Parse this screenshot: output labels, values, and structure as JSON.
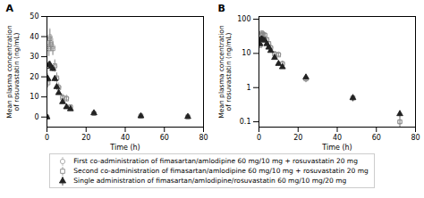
{
  "chart_data": [
    {
      "type": "scatter",
      "title": "A",
      "xlabel": "Time (h)",
      "ylabel": "Mean plasma concentration\nof rosuvastatin (ng/mL)",
      "xlim": [
        0,
        80
      ],
      "xticks": [
        0,
        20,
        40,
        60,
        80
      ],
      "ylim": [
        -5,
        50
      ],
      "yticks": [
        0,
        10,
        20,
        30,
        40,
        50
      ],
      "grid": false,
      "x": [
        0,
        0.5,
        1,
        1.5,
        2,
        3,
        4,
        5,
        6,
        8,
        10,
        12,
        24,
        48,
        72
      ],
      "series": [
        {
          "name": "First co-administration of fimasartan/amlodipine 60 mg/10 mg + rosuvastatin 20 mg",
          "color": "#aaaaaa",
          "marker": "circle-open",
          "values": [
            0.0,
            18.5,
            35.0,
            40.0,
            37.0,
            35.0,
            25.0,
            19.0,
            15.0,
            10.0,
            9.5,
            5.0,
            1.8,
            0.5,
            0.1
          ],
          "errors": [
            0.0,
            3.0,
            4.5,
            4.0,
            4.0,
            4.0,
            3.0,
            2.5,
            2.0,
            1.5,
            1.5,
            1.0,
            0.4,
            0.12,
            0.03
          ]
        },
        {
          "name": "Second co-administration of fimasartan/amlodipine 60 mg/10 mg + rosuvastatin 20 mg",
          "color": "#888888",
          "marker": "square-open",
          "values": [
            0.0,
            17.0,
            34.0,
            39.0,
            36.0,
            34.0,
            25.5,
            19.5,
            14.5,
            9.5,
            9.0,
            5.0,
            1.8,
            0.5,
            0.1
          ],
          "errors": [
            0.0,
            2.5,
            4.0,
            4.5,
            3.5,
            3.5,
            3.0,
            2.5,
            1.8,
            1.5,
            1.2,
            0.9,
            0.4,
            0.12,
            0.03
          ]
        },
        {
          "name": "Single administration of fimasartan/amlodipine/rosuvastatin 60 mg/10 mg/20 mg",
          "color": "#222222",
          "marker": "triangle",
          "values": [
            0.0,
            19.0,
            26.0,
            26.0,
            25.0,
            24.0,
            19.0,
            15.0,
            12.0,
            7.5,
            5.0,
            4.0,
            2.0,
            0.5,
            0.17
          ],
          "errors": [
            0.0,
            1.5,
            1.5,
            1.8,
            1.8,
            1.5,
            1.5,
            1.2,
            1.0,
            0.8,
            0.7,
            0.5,
            0.3,
            0.1,
            0.04
          ]
        }
      ]
    },
    {
      "type": "scatter",
      "title": "B",
      "xlabel": "Time (h)",
      "ylabel": "Mean plasma concentration\nof rosuvastatin (ng/mL)",
      "log": "y",
      "xlim": [
        0,
        80
      ],
      "xticks": [
        0,
        20,
        40,
        60,
        80
      ],
      "ylim": [
        0.07,
        120
      ],
      "yticks": [
        0.1,
        1,
        10,
        100
      ],
      "grid": false,
      "x": [
        0.5,
        1,
        1.5,
        2,
        3,
        4,
        5,
        6,
        8,
        10,
        12,
        24,
        48,
        72
      ],
      "series": [
        {
          "name": "First co-administration of fimasartan/amlodipine 60 mg/10 mg + rosuvastatin 20 mg",
          "color": "#aaaaaa",
          "marker": "circle-open",
          "values": [
            18.5,
            35.0,
            40.0,
            37.0,
            35.0,
            25.0,
            19.0,
            15.0,
            10.0,
            9.5,
            5.0,
            1.8,
            0.5,
            0.1
          ],
          "errors": [
            3.0,
            4.5,
            4.0,
            4.0,
            4.0,
            3.0,
            2.5,
            2.0,
            1.5,
            1.5,
            1.0,
            0.4,
            0.12,
            0.03
          ]
        },
        {
          "name": "Second co-administration of fimasartan/amlodipine 60 mg/10 mg + rosuvastatin 20 mg",
          "color": "#888888",
          "marker": "square-open",
          "values": [
            17.0,
            34.0,
            39.0,
            36.0,
            34.0,
            25.5,
            19.5,
            14.5,
            9.5,
            9.0,
            5.0,
            1.8,
            0.5,
            0.1
          ],
          "errors": [
            2.5,
            4.0,
            4.5,
            3.5,
            3.5,
            3.0,
            2.5,
            1.8,
            1.5,
            1.2,
            0.9,
            0.4,
            0.12,
            0.03
          ]
        },
        {
          "name": "Single administration of fimasartan/amlodipine/rosuvastatin 60 mg/10 mg/20 mg",
          "color": "#222222",
          "marker": "triangle",
          "values": [
            19.0,
            26.0,
            26.0,
            25.0,
            24.0,
            19.0,
            15.0,
            12.0,
            7.5,
            5.0,
            4.0,
            2.0,
            0.5,
            0.17
          ],
          "errors": [
            1.5,
            1.5,
            1.8,
            1.8,
            1.5,
            1.5,
            1.2,
            1.0,
            0.8,
            0.7,
            0.5,
            0.3,
            0.1,
            0.04
          ]
        }
      ]
    }
  ]
}
